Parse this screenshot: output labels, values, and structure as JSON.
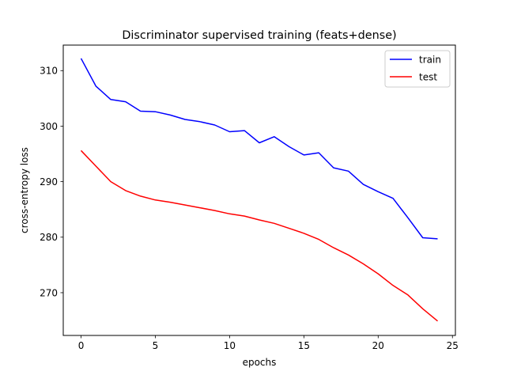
{
  "chart_data": {
    "type": "line",
    "title": "Discriminator supervised training (feats+dense)",
    "xlabel": "epochs",
    "ylabel": "cross-entropy loss",
    "xlim": [
      -1.2,
      25.2
    ],
    "ylim": [
      262.3,
      314.6
    ],
    "xticks": [
      0,
      5,
      10,
      15,
      20,
      25
    ],
    "yticks": [
      270,
      280,
      290,
      300,
      310
    ],
    "grid": false,
    "legend_position": "top-right",
    "x": [
      0,
      1,
      2,
      3,
      4,
      5,
      6,
      7,
      8,
      9,
      10,
      11,
      12,
      13,
      14,
      15,
      16,
      17,
      18,
      19,
      20,
      21,
      22,
      23,
      24
    ],
    "series": [
      {
        "name": "train",
        "color": "#0000ff",
        "values": [
          312.2,
          307.2,
          304.8,
          304.4,
          302.7,
          302.6,
          302.0,
          301.2,
          300.8,
          300.2,
          299.0,
          299.2,
          297.0,
          298.1,
          296.3,
          294.8,
          295.2,
          292.5,
          291.9,
          289.5,
          288.2,
          287.0,
          283.5,
          279.9,
          279.7
        ]
      },
      {
        "name": "test",
        "color": "#ff0000",
        "values": [
          295.6,
          292.8,
          290.0,
          288.4,
          287.4,
          286.7,
          286.3,
          285.8,
          285.3,
          284.8,
          284.2,
          283.8,
          283.1,
          282.5,
          281.6,
          280.7,
          279.6,
          278.1,
          276.8,
          275.2,
          273.4,
          271.3,
          269.6,
          267.1,
          264.9
        ]
      }
    ]
  }
}
